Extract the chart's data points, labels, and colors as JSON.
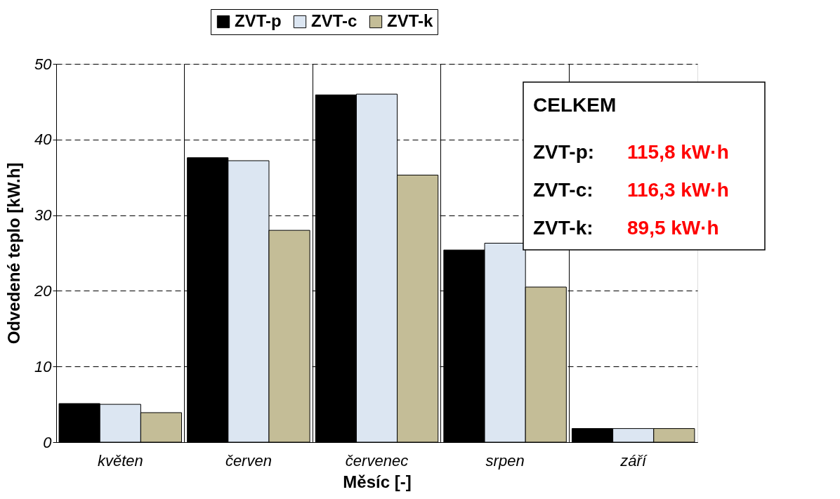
{
  "chart_data": {
    "type": "bar",
    "xlabel": "Měsíc [-]",
    "ylabel": "Odvedené teplo [kW.h]",
    "categories": [
      "květen",
      "červen",
      "červenec",
      "srpen",
      "září"
    ],
    "series": [
      {
        "name": "ZVT-p",
        "color": "#000000",
        "values": [
          5.1,
          37.6,
          45.9,
          25.4,
          1.8
        ]
      },
      {
        "name": "ZVT-c",
        "color": "#dce6f2",
        "values": [
          5.0,
          37.2,
          46.0,
          26.3,
          1.8
        ]
      },
      {
        "name": "ZVT-k",
        "color": "#c4bd97",
        "values": [
          3.9,
          28.0,
          35.3,
          20.5,
          1.8
        ]
      }
    ],
    "ylim": [
      0,
      50
    ],
    "yticks": [
      0,
      10,
      20,
      30,
      40,
      50
    ],
    "grid": true,
    "legend": "top",
    "annotations": [
      "CELKEM",
      "ZVT-p:",
      "115,8 kW·h",
      "ZVT-c:",
      "116,3 kW·h",
      "ZVT-k:",
      "89,5 kW·h"
    ]
  }
}
